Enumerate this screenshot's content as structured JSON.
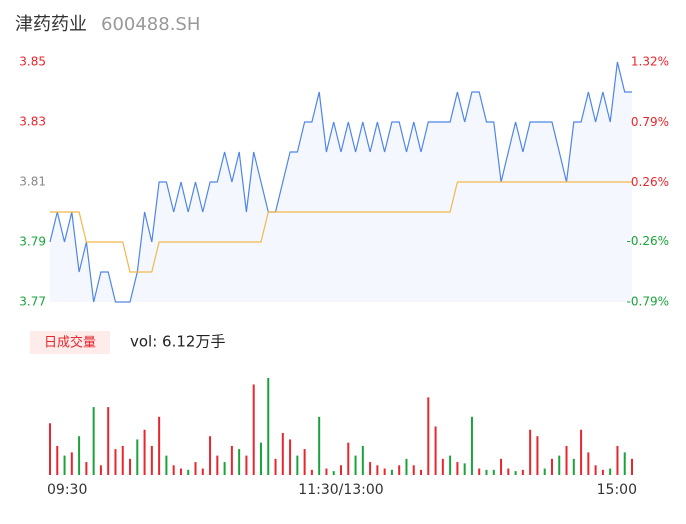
{
  "header": {
    "name": "津药药业",
    "code": "600488.SH"
  },
  "chart_data": [
    {
      "type": "line",
      "x": [
        0,
        3,
        6,
        9,
        12,
        15,
        18,
        21,
        24,
        27,
        30,
        33,
        36,
        39,
        42,
        45,
        48,
        51,
        54,
        57,
        60,
        63,
        66,
        69,
        72,
        75,
        78,
        81,
        84,
        87,
        90,
        93,
        96,
        99,
        102,
        105,
        108,
        111,
        114,
        117,
        120,
        123,
        126,
        129,
        132,
        135,
        138,
        141,
        144,
        147,
        150,
        153,
        156,
        159,
        162,
        165,
        168,
        171,
        174,
        177,
        180,
        183,
        186,
        189,
        192,
        195,
        198,
        201,
        204,
        207,
        210,
        213,
        216,
        219,
        222,
        225,
        228,
        231,
        234,
        237,
        240
      ],
      "xlim": [
        0,
        240
      ],
      "ylim": [
        3.77,
        3.85
      ],
      "yticks": [
        3.85,
        3.83,
        3.81,
        3.79,
        3.77
      ],
      "ytick_colors": [
        "#e8262e",
        "#e8262e",
        "#888888",
        "#1aa33a",
        "#1aa33a"
      ],
      "y2lim": [
        -0.79,
        1.32
      ],
      "y2ticks": [
        {
          "value": 1.32,
          "label": "1.32%"
        },
        {
          "value": 0.79,
          "label": "0.79%"
        },
        {
          "value": 0.26,
          "label": "0.26%"
        },
        {
          "value": -0.26,
          "label": "-0.26%"
        },
        {
          "value": -0.79,
          "label": "-0.79%"
        }
      ],
      "y2tick_colors": [
        "#e8262e",
        "#e8262e",
        "#e8262e",
        "#1aa33a",
        "#1aa33a"
      ],
      "area_color": "#f4f7fd",
      "series": [
        {
          "color": "#4f86e8",
          "values": [
            3.79,
            3.8,
            3.79,
            3.8,
            3.78,
            3.79,
            3.77,
            3.78,
            3.78,
            3.77,
            3.77,
            3.77,
            3.78,
            3.8,
            3.79,
            3.81,
            3.81,
            3.8,
            3.81,
            3.8,
            3.81,
            3.8,
            3.81,
            3.81,
            3.82,
            3.81,
            3.82,
            3.8,
            3.82,
            3.81,
            3.8,
            3.8,
            3.81,
            3.82,
            3.82,
            3.83,
            3.83,
            3.84,
            3.82,
            3.83,
            3.82,
            3.83,
            3.82,
            3.83,
            3.82,
            3.83,
            3.82,
            3.83,
            3.83,
            3.82,
            3.83,
            3.82,
            3.83,
            3.83,
            3.83,
            3.83,
            3.84,
            3.83,
            3.84,
            3.84,
            3.83,
            3.83,
            3.81,
            3.82,
            3.83,
            3.82,
            3.83,
            3.83,
            3.83,
            3.83,
            3.82,
            3.81,
            3.83,
            3.83,
            3.84,
            3.83,
            3.84,
            3.83,
            3.85,
            3.84,
            3.84
          ]
        },
        {
          "color": "#f2b84b",
          "values": [
            3.8,
            3.8,
            3.8,
            3.8,
            3.8,
            3.79,
            3.79,
            3.79,
            3.79,
            3.79,
            3.79,
            3.78,
            3.78,
            3.78,
            3.78,
            3.79,
            3.79,
            3.79,
            3.79,
            3.79,
            3.79,
            3.79,
            3.79,
            3.79,
            3.79,
            3.79,
            3.79,
            3.79,
            3.79,
            3.79,
            3.8,
            3.8,
            3.8,
            3.8,
            3.8,
            3.8,
            3.8,
            3.8,
            3.8,
            3.8,
            3.8,
            3.8,
            3.8,
            3.8,
            3.8,
            3.8,
            3.8,
            3.8,
            3.8,
            3.8,
            3.8,
            3.8,
            3.8,
            3.8,
            3.8,
            3.8,
            3.81,
            3.81,
            3.81,
            3.81,
            3.81,
            3.81,
            3.81,
            3.81,
            3.81,
            3.81,
            3.81,
            3.81,
            3.81,
            3.81,
            3.81,
            3.81,
            3.81,
            3.81,
            3.81,
            3.81,
            3.81,
            3.81,
            3.81,
            3.81,
            3.81
          ]
        }
      ]
    },
    {
      "type": "bar",
      "title": "日成交量",
      "subtitle": "vol: 6.12万手",
      "x": [
        0,
        3,
        6,
        9,
        12,
        15,
        18,
        21,
        24,
        27,
        30,
        33,
        36,
        39,
        42,
        45,
        48,
        51,
        54,
        57,
        60,
        63,
        66,
        69,
        72,
        75,
        78,
        81,
        84,
        87,
        90,
        93,
        96,
        99,
        102,
        105,
        108,
        111,
        114,
        117,
        120,
        123,
        126,
        129,
        132,
        135,
        138,
        141,
        144,
        147,
        150,
        153,
        156,
        159,
        162,
        165,
        168,
        171,
        174,
        177,
        180,
        183,
        186,
        189,
        192,
        195,
        198,
        201,
        204,
        207,
        210,
        213,
        216,
        219,
        222,
        225,
        228,
        231,
        234,
        237,
        240
      ],
      "xlim": [
        0,
        240
      ],
      "xticks": [
        {
          "value": 0,
          "label": "09:30"
        },
        {
          "value": 120,
          "label": "11:30/13:00"
        },
        {
          "value": 240,
          "label": "15:00"
        }
      ],
      "values": [
        800,
        450,
        300,
        350,
        600,
        200,
        1050,
        150,
        1050,
        400,
        450,
        250,
        550,
        700,
        450,
        900,
        300,
        150,
        100,
        80,
        200,
        100,
        600,
        300,
        200,
        450,
        400,
        300,
        1400,
        500,
        1500,
        250,
        650,
        550,
        300,
        400,
        80,
        900,
        100,
        60,
        150,
        500,
        300,
        450,
        200,
        150,
        100,
        80,
        150,
        250,
        150,
        80,
        1200,
        750,
        250,
        300,
        200,
        180,
        900,
        100,
        80,
        80,
        250,
        100,
        60,
        80,
        700,
        600,
        100,
        250,
        300,
        450,
        250,
        700,
        350,
        150,
        80,
        100,
        450,
        350,
        250
      ],
      "colors": [
        "#e8262e",
        "#e8262e",
        "#1aa33a",
        "#e8262e",
        "#1aa33a",
        "#e8262e",
        "#1aa33a",
        "#e8262e",
        "#e8262e",
        "#e8262e",
        "#e8262e",
        "#e8262e",
        "#1aa33a",
        "#e8262e",
        "#e8262e",
        "#e8262e",
        "#1aa33a",
        "#e8262e",
        "#e8262e",
        "#1aa33a",
        "#e8262e",
        "#e8262e",
        "#e8262e",
        "#e8262e",
        "#1aa33a",
        "#e8262e",
        "#1aa33a",
        "#e8262e",
        "#e8262e",
        "#1aa33a",
        "#1aa33a",
        "#e8262e",
        "#e8262e",
        "#e8262e",
        "#1aa33a",
        "#e8262e",
        "#e8262e",
        "#1aa33a",
        "#e8262e",
        "#1aa33a",
        "#e8262e",
        "#e8262e",
        "#1aa33a",
        "#1aa33a",
        "#e8262e",
        "#e8262e",
        "#e8262e",
        "#1aa33a",
        "#e8262e",
        "#1aa33a",
        "#e8262e",
        "#e8262e",
        "#e8262e",
        "#e8262e",
        "#e8262e",
        "#1aa33a",
        "#e8262e",
        "#1aa33a",
        "#1aa33a",
        "#e8262e",
        "#1aa33a",
        "#1aa33a",
        "#e8262e",
        "#e8262e",
        "#1aa33a",
        "#e8262e",
        "#e8262e",
        "#e8262e",
        "#1aa33a",
        "#e8262e",
        "#1aa33a",
        "#e8262e",
        "#1aa33a",
        "#e8262e",
        "#e8262e",
        "#e8262e",
        "#e8262e",
        "#1aa33a",
        "#e8262e",
        "#1aa33a",
        "#e8262e"
      ]
    }
  ]
}
